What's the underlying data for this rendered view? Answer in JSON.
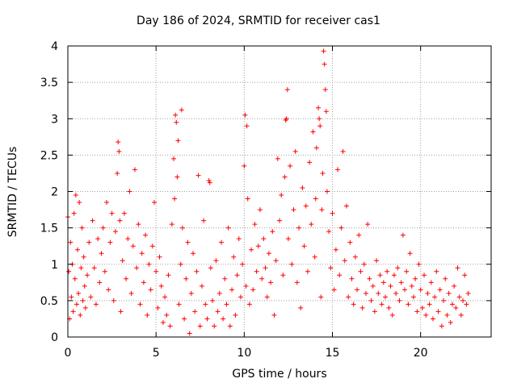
{
  "chart_data": {
    "type": "scatter",
    "title": "Day 186 of 2024, SRMTID for receiver cas1",
    "xlabel": "GPS time / hours",
    "ylabel": "SRMTID / TECUs",
    "xlim": [
      0,
      24
    ],
    "ylim": [
      0,
      4
    ],
    "xticks": [
      0,
      5,
      10,
      15,
      20
    ],
    "yticks": [
      0,
      0.5,
      1,
      1.5,
      2,
      2.5,
      3,
      3.5,
      4
    ],
    "xtick_labels": [
      "0",
      "5",
      "10",
      "15",
      "20"
    ],
    "ytick_labels": [
      "0",
      "0.5",
      "1",
      "1.5",
      "2",
      "2.5",
      "3",
      "3.5",
      "4"
    ],
    "grid": true,
    "marker": "+",
    "color": "#ff0000",
    "series": [
      {
        "name": "SRMTID",
        "points": [
          [
            0.0,
            1.65
          ],
          [
            0.05,
            0.9
          ],
          [
            0.1,
            0.25
          ],
          [
            0.15,
            1.3
          ],
          [
            0.2,
            0.55
          ],
          [
            0.25,
            1.0
          ],
          [
            0.3,
            0.35
          ],
          [
            0.35,
            1.7
          ],
          [
            0.4,
            0.8
          ],
          [
            0.45,
            1.95
          ],
          [
            0.5,
            0.45
          ],
          [
            0.55,
            1.2
          ],
          [
            0.6,
            0.6
          ],
          [
            0.65,
            1.85
          ],
          [
            0.7,
            0.3
          ],
          [
            0.75,
            0.95
          ],
          [
            0.8,
            1.5
          ],
          [
            0.85,
            0.5
          ],
          [
            0.9,
            1.1
          ],
          [
            0.95,
            0.7
          ],
          [
            1.0,
            0.4
          ],
          [
            1.1,
            0.85
          ],
          [
            1.2,
            1.3
          ],
          [
            1.3,
            0.55
          ],
          [
            1.4,
            1.6
          ],
          [
            1.5,
            0.95
          ],
          [
            1.6,
            0.45
          ],
          [
            1.7,
            1.35
          ],
          [
            1.8,
            0.75
          ],
          [
            1.9,
            1.15
          ],
          [
            2.0,
            1.5
          ],
          [
            2.1,
            0.9
          ],
          [
            2.2,
            1.85
          ],
          [
            2.3,
            0.65
          ],
          [
            2.4,
            1.3
          ],
          [
            2.5,
            1.7
          ],
          [
            2.6,
            0.5
          ],
          [
            2.7,
            1.45
          ],
          [
            2.8,
            2.25
          ],
          [
            2.85,
            2.68
          ],
          [
            2.9,
            2.55
          ],
          [
            2.95,
            1.6
          ],
          [
            3.0,
            0.35
          ],
          [
            3.1,
            1.05
          ],
          [
            3.2,
            1.7
          ],
          [
            3.3,
            0.8
          ],
          [
            3.4,
            1.35
          ],
          [
            3.5,
            2.0
          ],
          [
            3.6,
            0.6
          ],
          [
            3.7,
            1.25
          ],
          [
            3.8,
            2.3
          ],
          [
            3.9,
            0.95
          ],
          [
            4.0,
            1.55
          ],
          [
            4.1,
            0.45
          ],
          [
            4.2,
            1.15
          ],
          [
            4.3,
            0.75
          ],
          [
            4.4,
            1.4
          ],
          [
            4.5,
            0.3
          ],
          [
            4.6,
            1.0
          ],
          [
            4.7,
            0.65
          ],
          [
            4.8,
            1.25
          ],
          [
            4.9,
            1.85
          ],
          [
            5.0,
            0.9
          ],
          [
            5.1,
            0.4
          ],
          [
            5.2,
            1.1
          ],
          [
            5.3,
            0.7
          ],
          [
            5.4,
            0.2
          ],
          [
            5.5,
            0.55
          ],
          [
            5.6,
            0.3
          ],
          [
            5.7,
            0.85
          ],
          [
            5.8,
            0.15
          ],
          [
            5.9,
            1.55
          ],
          [
            6.0,
            2.45
          ],
          [
            6.05,
            1.9
          ],
          [
            6.1,
            3.05
          ],
          [
            6.15,
            2.95
          ],
          [
            6.2,
            2.2
          ],
          [
            6.25,
            2.7
          ],
          [
            6.3,
            0.45
          ],
          [
            6.4,
            1.0
          ],
          [
            6.45,
            3.12
          ],
          [
            6.5,
            1.5
          ],
          [
            6.6,
            0.25
          ],
          [
            6.7,
            0.8
          ],
          [
            6.8,
            1.3
          ],
          [
            6.9,
            0.05
          ],
          [
            7.0,
            0.6
          ],
          [
            7.1,
            1.15
          ],
          [
            7.2,
            0.35
          ],
          [
            7.3,
            0.9
          ],
          [
            7.4,
            2.22
          ],
          [
            7.5,
            0.15
          ],
          [
            7.6,
            0.7
          ],
          [
            7.7,
            1.6
          ],
          [
            7.8,
            0.45
          ],
          [
            7.9,
            0.25
          ],
          [
            8.0,
            2.15
          ],
          [
            8.05,
            2.12
          ],
          [
            8.1,
            0.95
          ],
          [
            8.2,
            0.5
          ],
          [
            8.3,
            0.15
          ],
          [
            8.4,
            1.05
          ],
          [
            8.5,
            0.35
          ],
          [
            8.6,
            0.6
          ],
          [
            8.7,
            1.3
          ],
          [
            8.8,
            0.25
          ],
          [
            8.9,
            0.8
          ],
          [
            9.0,
            0.45
          ],
          [
            9.1,
            1.5
          ],
          [
            9.2,
            0.15
          ],
          [
            9.3,
            0.65
          ],
          [
            9.4,
            1.1
          ],
          [
            9.5,
            0.3
          ],
          [
            9.6,
            0.85
          ],
          [
            9.7,
            1.35
          ],
          [
            9.8,
            0.55
          ],
          [
            9.9,
            1.0
          ],
          [
            10.0,
            2.35
          ],
          [
            10.05,
            3.05
          ],
          [
            10.1,
            0.7
          ],
          [
            10.15,
            2.9
          ],
          [
            10.2,
            1.9
          ],
          [
            10.3,
            0.45
          ],
          [
            10.4,
            1.2
          ],
          [
            10.5,
            0.65
          ],
          [
            10.6,
            1.55
          ],
          [
            10.7,
            0.9
          ],
          [
            10.8,
            1.25
          ],
          [
            10.9,
            1.75
          ],
          [
            11.0,
            0.8
          ],
          [
            11.1,
            1.35
          ],
          [
            11.2,
            0.95
          ],
          [
            11.3,
            0.55
          ],
          [
            11.4,
            1.15
          ],
          [
            11.5,
            0.75
          ],
          [
            11.6,
            1.45
          ],
          [
            11.7,
            0.3
          ],
          [
            11.8,
            1.05
          ],
          [
            11.9,
            2.45
          ],
          [
            12.0,
            1.6
          ],
          [
            12.1,
            1.95
          ],
          [
            12.2,
            0.85
          ],
          [
            12.3,
            2.2
          ],
          [
            12.35,
            2.98
          ],
          [
            12.4,
            3.0
          ],
          [
            12.45,
            3.4
          ],
          [
            12.5,
            1.35
          ],
          [
            12.6,
            2.35
          ],
          [
            12.7,
            1.0
          ],
          [
            12.8,
            1.75
          ],
          [
            12.9,
            2.55
          ],
          [
            13.0,
            0.75
          ],
          [
            13.1,
            1.5
          ],
          [
            13.2,
            0.4
          ],
          [
            13.3,
            2.05
          ],
          [
            13.4,
            1.25
          ],
          [
            13.5,
            1.8
          ],
          [
            13.6,
            0.9
          ],
          [
            13.7,
            2.4
          ],
          [
            13.8,
            1.55
          ],
          [
            13.9,
            2.82
          ],
          [
            14.0,
            1.1
          ],
          [
            14.05,
            1.9
          ],
          [
            14.1,
            2.6
          ],
          [
            14.2,
            3.15
          ],
          [
            14.25,
            3.0
          ],
          [
            14.3,
            2.9
          ],
          [
            14.35,
            0.55
          ],
          [
            14.4,
            1.75
          ],
          [
            14.45,
            2.25
          ],
          [
            14.5,
            3.93
          ],
          [
            14.55,
            3.75
          ],
          [
            14.6,
            3.4
          ],
          [
            14.65,
            3.1
          ],
          [
            14.7,
            2.0
          ],
          [
            14.8,
            1.45
          ],
          [
            14.9,
            0.95
          ],
          [
            15.0,
            1.7
          ],
          [
            15.1,
            0.65
          ],
          [
            15.2,
            1.2
          ],
          [
            15.3,
            2.3
          ],
          [
            15.4,
            0.85
          ],
          [
            15.5,
            1.5
          ],
          [
            15.6,
            2.55
          ],
          [
            15.7,
            1.05
          ],
          [
            15.8,
            1.8
          ],
          [
            15.9,
            0.55
          ],
          [
            16.0,
            1.3
          ],
          [
            16.1,
            0.8
          ],
          [
            16.2,
            0.45
          ],
          [
            16.3,
            1.1
          ],
          [
            16.4,
            0.65
          ],
          [
            16.5,
            1.4
          ],
          [
            16.6,
            0.9
          ],
          [
            16.7,
            0.4
          ],
          [
            16.8,
            1.0
          ],
          [
            16.9,
            0.6
          ],
          [
            17.0,
            1.55
          ],
          [
            17.1,
            0.8
          ],
          [
            17.2,
            0.5
          ],
          [
            17.3,
            0.7
          ],
          [
            17.4,
            0.35
          ],
          [
            17.5,
            1.05
          ],
          [
            17.6,
            0.6
          ],
          [
            17.7,
            0.85
          ],
          [
            17.8,
            0.45
          ],
          [
            17.9,
            0.75
          ],
          [
            18.0,
            0.55
          ],
          [
            18.1,
            0.9
          ],
          [
            18.2,
            0.4
          ],
          [
            18.3,
            0.7
          ],
          [
            18.4,
            0.3
          ],
          [
            18.5,
            0.85
          ],
          [
            18.6,
            0.6
          ],
          [
            18.7,
            0.95
          ],
          [
            18.8,
            0.5
          ],
          [
            18.9,
            0.75
          ],
          [
            19.0,
            1.4
          ],
          [
            19.1,
            0.65
          ],
          [
            19.2,
            0.9
          ],
          [
            19.3,
            0.45
          ],
          [
            19.4,
            1.15
          ],
          [
            19.5,
            0.7
          ],
          [
            19.6,
            0.55
          ],
          [
            19.7,
            0.8
          ],
          [
            19.8,
            0.35
          ],
          [
            19.9,
            1.0
          ],
          [
            20.0,
            0.65
          ],
          [
            20.1,
            0.4
          ],
          [
            20.2,
            0.85
          ],
          [
            20.3,
            0.3
          ],
          [
            20.4,
            0.6
          ],
          [
            20.5,
            0.45
          ],
          [
            20.6,
            0.75
          ],
          [
            20.7,
            0.25
          ],
          [
            20.8,
            0.55
          ],
          [
            20.9,
            0.9
          ],
          [
            21.0,
            0.35
          ],
          [
            21.1,
            0.65
          ],
          [
            21.2,
            0.15
          ],
          [
            21.3,
            0.5
          ],
          [
            21.4,
            0.8
          ],
          [
            21.5,
            0.3
          ],
          [
            21.6,
            0.6
          ],
          [
            21.7,
            0.2
          ],
          [
            21.8,
            0.45
          ],
          [
            21.9,
            0.7
          ],
          [
            22.0,
            0.4
          ],
          [
            22.1,
            0.95
          ],
          [
            22.2,
            0.55
          ],
          [
            22.3,
            0.3
          ],
          [
            22.4,
            0.5
          ],
          [
            22.5,
            0.85
          ],
          [
            22.6,
            0.45
          ],
          [
            22.7,
            0.6
          ]
        ]
      }
    ]
  }
}
